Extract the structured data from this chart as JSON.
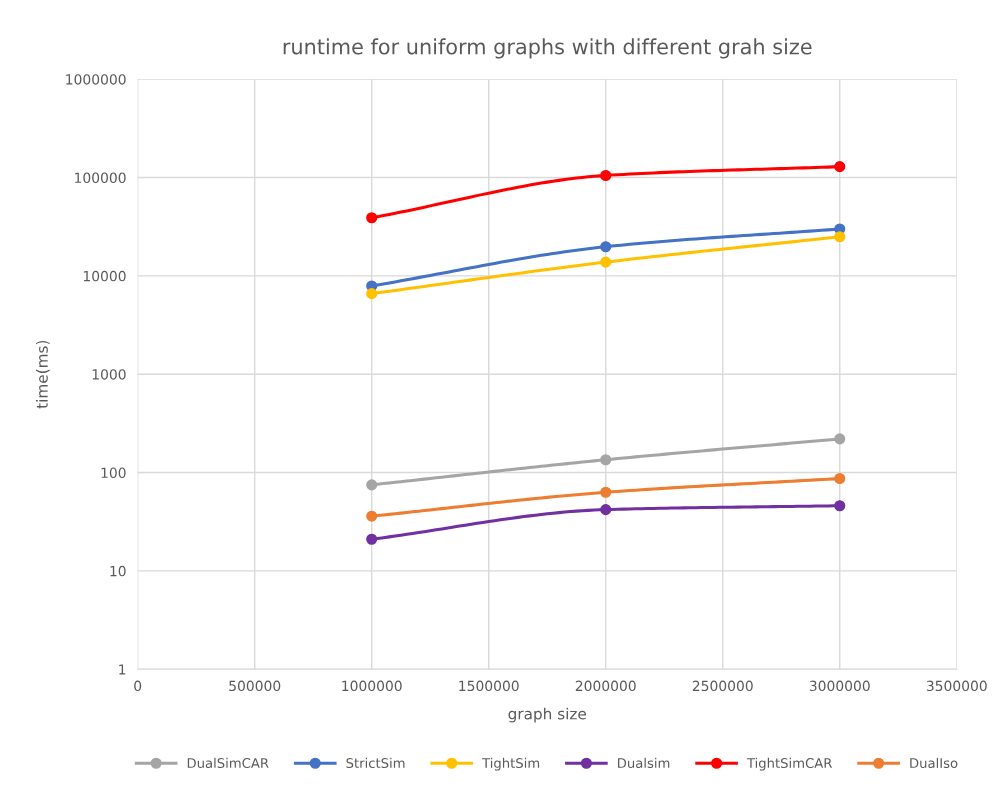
{
  "chart_data": {
    "type": "line",
    "title": "runtime for uniform graphs with different grah size",
    "xlabel": "graph size",
    "ylabel": "time(ms)",
    "x": [
      1000000,
      2000000,
      3000000
    ],
    "series": [
      {
        "name": "DualSimCAR",
        "color": "#a5a5a5",
        "values": [
          75,
          135,
          220
        ]
      },
      {
        "name": "StrictSim",
        "color": "#4472c4",
        "values": [
          7900,
          19800,
          30000
        ]
      },
      {
        "name": "TightSim",
        "color": "#ffc000",
        "values": [
          6600,
          13800,
          25000
        ]
      },
      {
        "name": "Dualsim",
        "color": "#7030a0",
        "values": [
          21,
          42,
          46
        ]
      },
      {
        "name": "TightSimCAR",
        "color": "#ff0000",
        "values": [
          39000,
          105000,
          129000
        ]
      },
      {
        "name": "DualIso",
        "color": "#ed7d31",
        "values": [
          36,
          63,
          87
        ]
      }
    ],
    "log": "y",
    "xlim": [
      0,
      3500000
    ],
    "xticks": [
      0,
      500000,
      1000000,
      1500000,
      2000000,
      2500000,
      3000000,
      3500000
    ],
    "ylim": [
      1,
      1000000
    ],
    "yticks": [
      1,
      10,
      100,
      1000,
      10000,
      100000,
      1000000
    ],
    "grid": true,
    "legend": "bottom",
    "marker": "circle",
    "line_style": "solid"
  }
}
